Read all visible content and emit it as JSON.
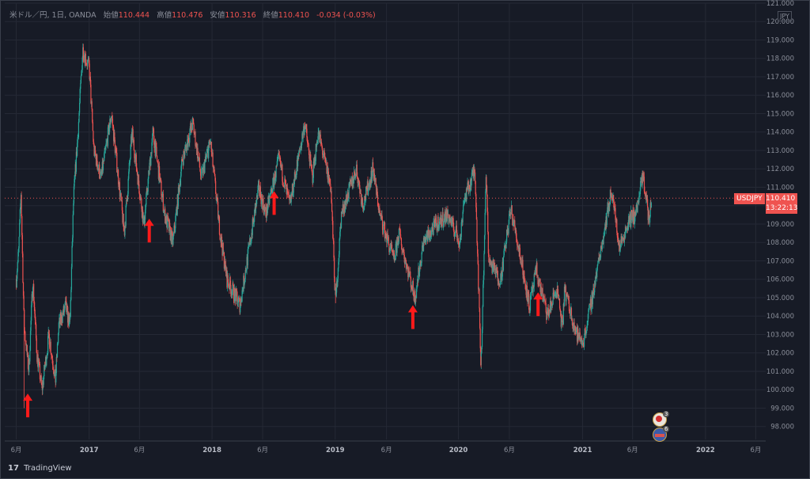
{
  "legend": {
    "symbol": "米ドル／円, 1日, OANDA",
    "open_label": "始値",
    "open": "110.444",
    "high_label": "高値",
    "high": "110.476",
    "low_label": "安値",
    "low": "110.316",
    "close_label": "終値",
    "close": "110.410",
    "change": "-0.034 (-0.03%)"
  },
  "price_tag": {
    "symbol": "USDJPY",
    "price": "110.410",
    "countdown": "13:22:13"
  },
  "currency_label": "JPY",
  "footer": {
    "logo": "17",
    "brand": "TradingView"
  },
  "badges": [
    {
      "name": "event-badge-3",
      "count": "3"
    },
    {
      "name": "event-badge-6",
      "count": "6"
    }
  ],
  "colors": {
    "background": "#171b26",
    "up": "#26a69a",
    "down": "#ef5350",
    "marker": "#ff1a1a",
    "grid": "#262a36"
  },
  "chart_data": {
    "type": "candlestick",
    "title": "",
    "ylim": [
      97.3,
      121.0
    ],
    "y_ticks": [
      "121.000",
      "120.000",
      "119.000",
      "118.000",
      "117.000",
      "116.000",
      "115.000",
      "114.000",
      "113.000",
      "112.000",
      "111.000",
      "110.000",
      "109.000",
      "108.000",
      "107.000",
      "106.000",
      "105.000",
      "104.000",
      "103.000",
      "102.000",
      "101.000",
      "100.000",
      "99.000",
      "98.000"
    ],
    "x_ticks": [
      "6月",
      "2017",
      "6月",
      "2018",
      "6月",
      "2019",
      "6月",
      "2020",
      "6月",
      "2021",
      "6月",
      "2022",
      "6月"
    ],
    "current_price": 110.41,
    "price_path": [
      {
        "t": "2016-06-01",
        "p": 106.0
      },
      {
        "t": "2016-06-08",
        "p": 107.5
      },
      {
        "t": "2016-06-15",
        "p": 110.7
      },
      {
        "t": "2016-06-24",
        "p": 103.5
      },
      {
        "t": "2016-07-08",
        "p": 101.0
      },
      {
        "t": "2016-07-20",
        "p": 106.0
      },
      {
        "t": "2016-08-01",
        "p": 102.0
      },
      {
        "t": "2016-08-16",
        "p": 100.0
      },
      {
        "t": "2016-09-06",
        "p": 103.0
      },
      {
        "t": "2016-09-25",
        "p": 100.5
      },
      {
        "t": "2016-10-05",
        "p": 103.5
      },
      {
        "t": "2016-10-25",
        "p": 104.5
      },
      {
        "t": "2016-11-07",
        "p": 103.5
      },
      {
        "t": "2016-11-18",
        "p": 110.5
      },
      {
        "t": "2016-12-01",
        "p": 114.0
      },
      {
        "t": "2016-12-15",
        "p": 118.5
      },
      {
        "t": "2017-01-03",
        "p": 117.5
      },
      {
        "t": "2017-01-17",
        "p": 113.0
      },
      {
        "t": "2017-02-07",
        "p": 111.5
      },
      {
        "t": "2017-03-10",
        "p": 115.0
      },
      {
        "t": "2017-04-17",
        "p": 108.5
      },
      {
        "t": "2017-05-10",
        "p": 114.0
      },
      {
        "t": "2017-06-14",
        "p": 109.0
      },
      {
        "t": "2017-07-11",
        "p": 114.0
      },
      {
        "t": "2017-08-15",
        "p": 109.5
      },
      {
        "t": "2017-09-08",
        "p": 108.0
      },
      {
        "t": "2017-10-06",
        "p": 112.5
      },
      {
        "t": "2017-11-06",
        "p": 114.5
      },
      {
        "t": "2017-12-01",
        "p": 111.5
      },
      {
        "t": "2017-12-28",
        "p": 113.5
      },
      {
        "t": "2018-01-26",
        "p": 108.5
      },
      {
        "t": "2018-02-15",
        "p": 106.0
      },
      {
        "t": "2018-03-26",
        "p": 104.6
      },
      {
        "t": "2018-04-20",
        "p": 107.5
      },
      {
        "t": "2018-05-21",
        "p": 111.0
      },
      {
        "t": "2018-06-10",
        "p": 109.5
      },
      {
        "t": "2018-07-19",
        "p": 112.5
      },
      {
        "t": "2018-08-20",
        "p": 110.0
      },
      {
        "t": "2018-10-04",
        "p": 114.5
      },
      {
        "t": "2018-10-26",
        "p": 111.5
      },
      {
        "t": "2018-11-12",
        "p": 114.0
      },
      {
        "t": "2018-12-20",
        "p": 111.0
      },
      {
        "t": "2019-01-03",
        "p": 104.7
      },
      {
        "t": "2019-01-20",
        "p": 109.5
      },
      {
        "t": "2019-03-05",
        "p": 112.0
      },
      {
        "t": "2019-03-25",
        "p": 110.0
      },
      {
        "t": "2019-04-24",
        "p": 112.0
      },
      {
        "t": "2019-05-14",
        "p": 109.5
      },
      {
        "t": "2019-06-25",
        "p": 107.0
      },
      {
        "t": "2019-07-10",
        "p": 108.5
      },
      {
        "t": "2019-08-26",
        "p": 105.0
      },
      {
        "t": "2019-09-20",
        "p": 108.0
      },
      {
        "t": "2019-10-30",
        "p": 109.0
      },
      {
        "t": "2019-12-02",
        "p": 109.5
      },
      {
        "t": "2020-01-07",
        "p": 108.0
      },
      {
        "t": "2020-01-17",
        "p": 110.2
      },
      {
        "t": "2020-02-20",
        "p": 112.0
      },
      {
        "t": "2020-03-09",
        "p": 101.2
      },
      {
        "t": "2020-03-24",
        "p": 111.7
      },
      {
        "t": "2020-04-01",
        "p": 107.0
      },
      {
        "t": "2020-05-06",
        "p": 106.0
      },
      {
        "t": "2020-06-05",
        "p": 109.8
      },
      {
        "t": "2020-07-01",
        "p": 107.5
      },
      {
        "t": "2020-07-31",
        "p": 104.5
      },
      {
        "t": "2020-08-20",
        "p": 106.5
      },
      {
        "t": "2020-09-21",
        "p": 104.0
      },
      {
        "t": "2020-10-20",
        "p": 105.5
      },
      {
        "t": "2020-11-06",
        "p": 103.2
      },
      {
        "t": "2020-11-11",
        "p": 105.5
      },
      {
        "t": "2020-12-17",
        "p": 103.0
      },
      {
        "t": "2021-01-06",
        "p": 102.6
      },
      {
        "t": "2021-02-01",
        "p": 105.0
      },
      {
        "t": "2021-03-31",
        "p": 110.9
      },
      {
        "t": "2021-04-23",
        "p": 107.7
      },
      {
        "t": "2021-05-20",
        "p": 109.2
      },
      {
        "t": "2021-06-10",
        "p": 109.5
      },
      {
        "t": "2021-07-02",
        "p": 111.6
      },
      {
        "t": "2021-07-20",
        "p": 109.2
      },
      {
        "t": "2021-07-28",
        "p": 110.41
      }
    ],
    "annotations": [
      {
        "type": "arrow-up",
        "t": "2016-07-05",
        "y": 98.5
      },
      {
        "type": "arrow-up",
        "t": "2017-06-30",
        "y": 108.0
      },
      {
        "type": "arrow-up",
        "t": "2018-07-05",
        "y": 109.5
      },
      {
        "type": "arrow-up",
        "t": "2019-08-20",
        "y": 103.3
      },
      {
        "type": "arrow-up",
        "t": "2020-08-25",
        "y": 104.0
      }
    ]
  }
}
